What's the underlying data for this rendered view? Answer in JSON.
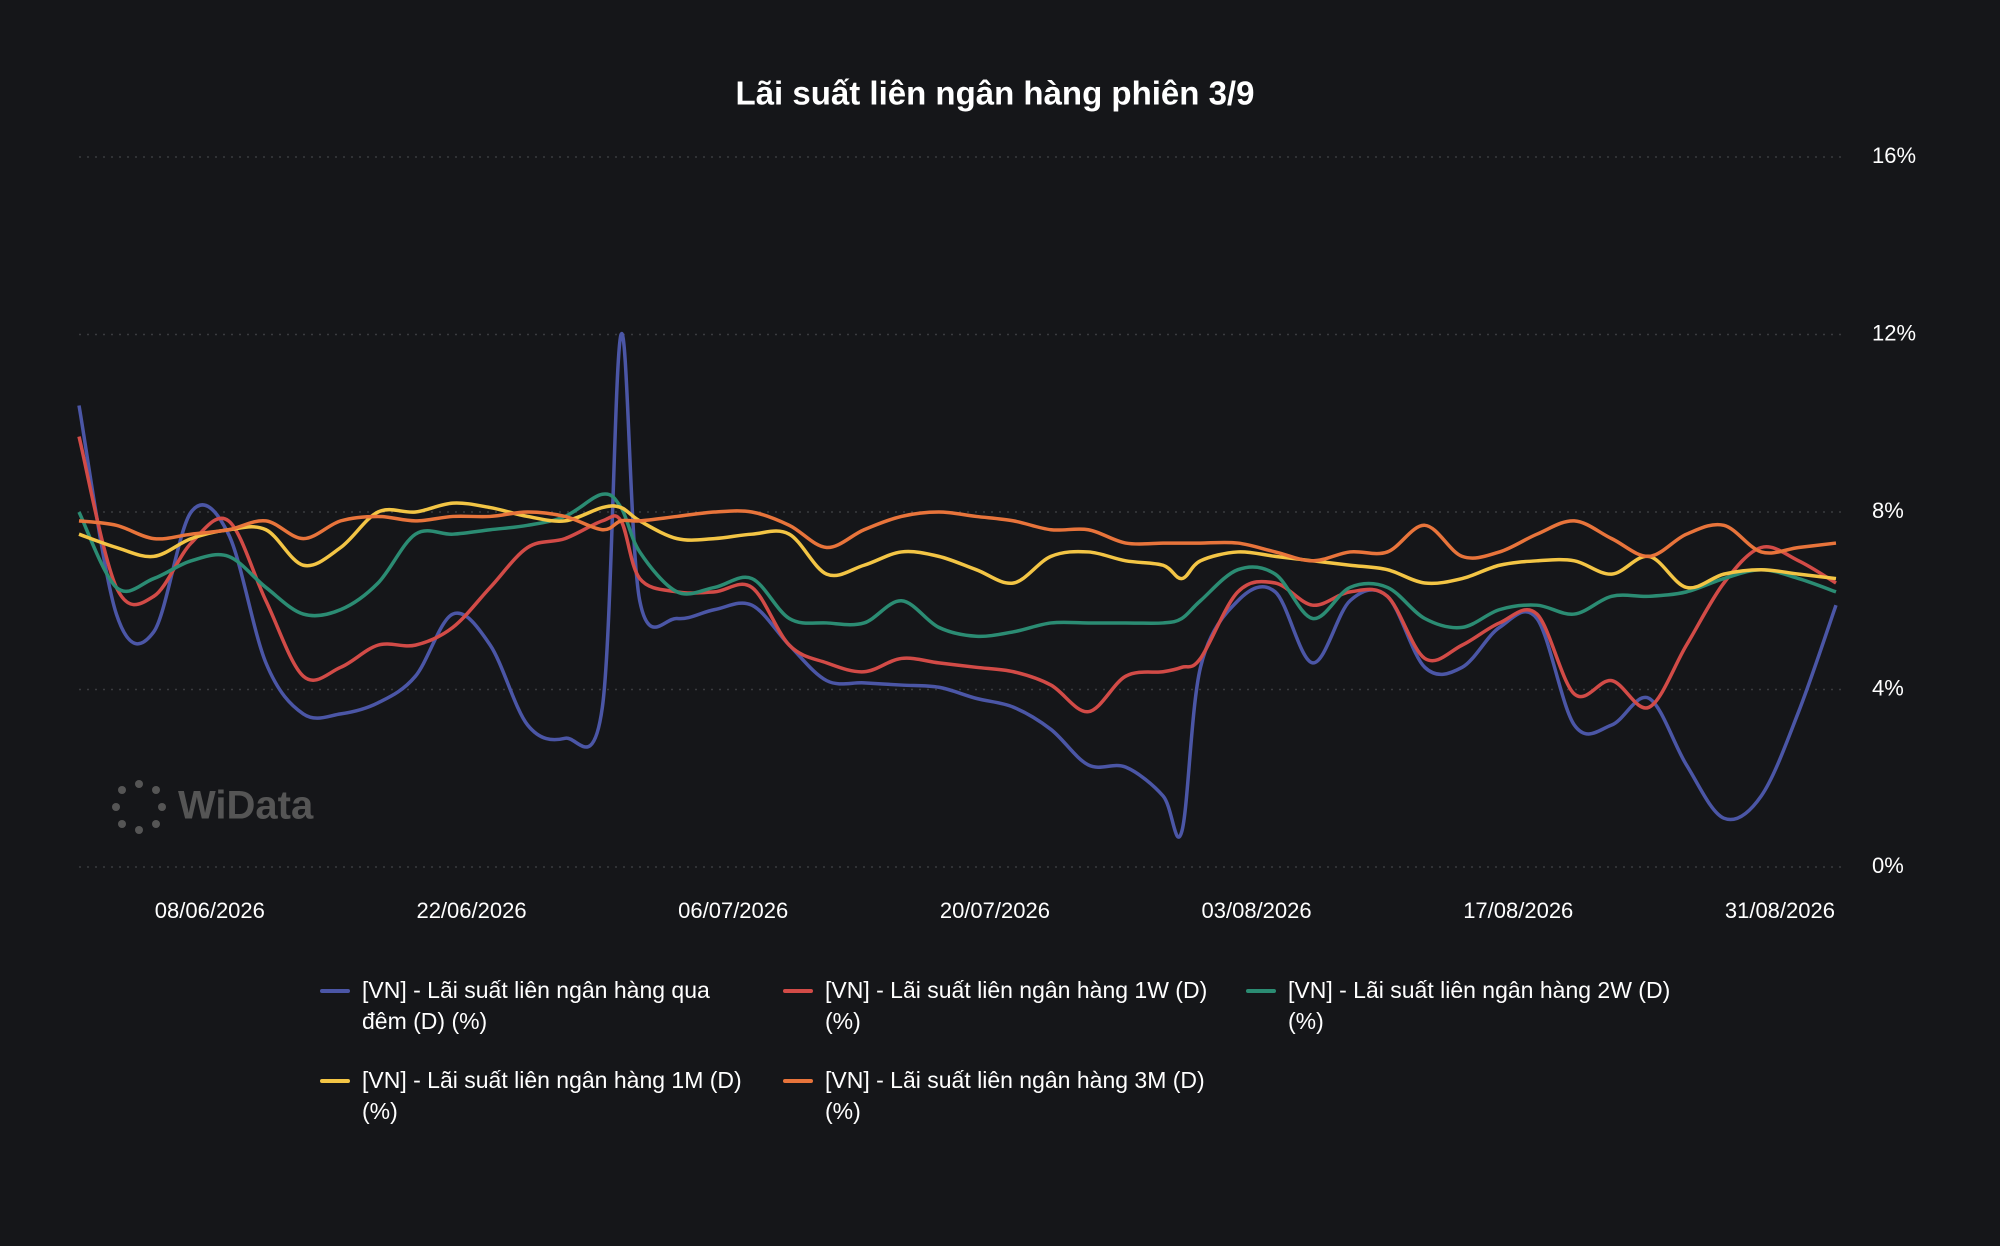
{
  "chart_data": {
    "type": "line",
    "title": "Lãi suất liên ngân hàng phiên 3/9",
    "watermark": "WiData",
    "x": [
      "2026-06-01",
      "2026-06-03",
      "2026-06-05",
      "2026-06-07",
      "2026-06-09",
      "2026-06-11",
      "2026-06-13",
      "2026-06-15",
      "2026-06-17",
      "2026-06-19",
      "2026-06-21",
      "2026-06-23",
      "2026-06-25",
      "2026-06-27",
      "2026-06-29",
      "2026-06-30",
      "2026-07-01",
      "2026-07-03",
      "2026-07-05",
      "2026-07-07",
      "2026-07-09",
      "2026-07-11",
      "2026-07-13",
      "2026-07-15",
      "2026-07-17",
      "2026-07-19",
      "2026-07-21",
      "2026-07-23",
      "2026-07-25",
      "2026-07-27",
      "2026-07-29",
      "2026-07-30",
      "2026-07-31",
      "2026-08-02",
      "2026-08-04",
      "2026-08-06",
      "2026-08-08",
      "2026-08-10",
      "2026-08-12",
      "2026-08-14",
      "2026-08-16",
      "2026-08-18",
      "2026-08-20",
      "2026-08-22",
      "2026-08-24",
      "2026-08-26",
      "2026-08-28",
      "2026-08-30",
      "2026-09-01",
      "2026-09-03"
    ],
    "series": [
      {
        "name": "[VN] - Lãi suất liên ngân hàng qua đêm (D) (%)",
        "color": "#4b56a6",
        "values": [
          10.4,
          5.7,
          5.3,
          8.0,
          7.5,
          4.6,
          3.45,
          3.45,
          3.7,
          4.3,
          5.7,
          5.0,
          3.2,
          2.9,
          3.6,
          12.0,
          6.0,
          5.6,
          5.8,
          5.9,
          5.0,
          4.2,
          4.15,
          4.1,
          4.05,
          3.8,
          3.6,
          3.1,
          2.3,
          2.25,
          1.6,
          0.8,
          4.5,
          6.0,
          6.2,
          4.6,
          6.0,
          6.1,
          4.5,
          4.5,
          5.4,
          5.6,
          3.2,
          3.2,
          3.8,
          2.3,
          1.1,
          1.6,
          3.5,
          5.9
        ]
      },
      {
        "name": "[VN] - Lãi suất liên ngân hàng 1W (D) (%)",
        "color": "#d24b47",
        "values": [
          9.7,
          6.3,
          6.1,
          7.3,
          7.8,
          6.0,
          4.3,
          4.5,
          5.0,
          5.0,
          5.4,
          6.3,
          7.2,
          7.4,
          7.8,
          7.8,
          6.5,
          6.2,
          6.2,
          6.3,
          5.0,
          4.6,
          4.4,
          4.7,
          4.6,
          4.5,
          4.4,
          4.1,
          3.5,
          4.3,
          4.4,
          4.5,
          4.7,
          6.2,
          6.4,
          5.9,
          6.2,
          6.1,
          4.7,
          5.0,
          5.5,
          5.7,
          3.9,
          4.2,
          3.6,
          5.0,
          6.4,
          7.2,
          6.9,
          6.4
        ]
      },
      {
        "name": "[VN] - Lãi suất liên ngân hàng 2W (D) (%)",
        "color": "#2b8c73",
        "values": [
          8.0,
          6.3,
          6.5,
          6.9,
          7.0,
          6.3,
          5.7,
          5.8,
          6.4,
          7.5,
          7.5,
          7.6,
          7.7,
          7.9,
          8.4,
          8.1,
          7.1,
          6.2,
          6.3,
          6.5,
          5.6,
          5.5,
          5.5,
          6.0,
          5.4,
          5.2,
          5.3,
          5.5,
          5.5,
          5.5,
          5.5,
          5.6,
          6.0,
          6.7,
          6.6,
          5.6,
          6.3,
          6.3,
          5.6,
          5.4,
          5.8,
          5.9,
          5.7,
          6.1,
          6.1,
          6.2,
          6.5,
          6.7,
          6.5,
          6.2
        ]
      },
      {
        "name": "[VN] - Lãi suất liên ngân hàng 1M (D) (%)",
        "color": "#f3c545",
        "values": [
          7.5,
          7.2,
          7.0,
          7.4,
          7.6,
          7.6,
          6.8,
          7.2,
          8.0,
          8.0,
          8.2,
          8.1,
          7.9,
          7.8,
          8.1,
          8.1,
          7.8,
          7.4,
          7.4,
          7.5,
          7.5,
          6.6,
          6.8,
          7.1,
          7.0,
          6.7,
          6.4,
          7.0,
          7.1,
          6.9,
          6.8,
          6.5,
          6.9,
          7.1,
          7.0,
          6.9,
          6.8,
          6.7,
          6.4,
          6.5,
          6.8,
          6.9,
          6.9,
          6.6,
          7.0,
          6.3,
          6.6,
          6.7,
          6.6,
          6.5
        ]
      },
      {
        "name": "[VN] - Lãi suất liên ngân hàng 3M (D) (%)",
        "color": "#e8743b",
        "values": [
          7.8,
          7.7,
          7.4,
          7.5,
          7.6,
          7.8,
          7.4,
          7.8,
          7.9,
          7.8,
          7.9,
          7.9,
          8.0,
          7.9,
          7.6,
          7.8,
          7.8,
          7.9,
          8.0,
          8.0,
          7.7,
          7.2,
          7.6,
          7.9,
          8.0,
          7.9,
          7.8,
          7.6,
          7.6,
          7.3,
          7.3,
          7.3,
          7.3,
          7.3,
          7.1,
          6.9,
          7.1,
          7.1,
          7.7,
          7.0,
          7.1,
          7.5,
          7.8,
          7.4,
          7.0,
          7.5,
          7.7,
          7.1,
          7.2,
          7.3
        ]
      }
    ],
    "xlim": [
      "2026-06-01",
      "2026-09-03"
    ],
    "xticks": [
      {
        "value": "2026-06-08",
        "label": "08/06/2026"
      },
      {
        "value": "2026-06-22",
        "label": "22/06/2026"
      },
      {
        "value": "2026-07-06",
        "label": "06/07/2026"
      },
      {
        "value": "2026-07-20",
        "label": "20/07/2026"
      },
      {
        "value": "2026-08-03",
        "label": "03/08/2026"
      },
      {
        "value": "2026-08-17",
        "label": "17/08/2026"
      },
      {
        "value": "2026-08-31",
        "label": "31/08/2026"
      }
    ],
    "ylim": [
      0,
      16
    ],
    "yticks": [
      {
        "value": 0,
        "label": "0%"
      },
      {
        "value": 4,
        "label": "4%"
      },
      {
        "value": 8,
        "label": "8%"
      },
      {
        "value": 12,
        "label": "12%"
      },
      {
        "value": 16,
        "label": "16%"
      }
    ],
    "grid": true,
    "legend": "bottom"
  }
}
